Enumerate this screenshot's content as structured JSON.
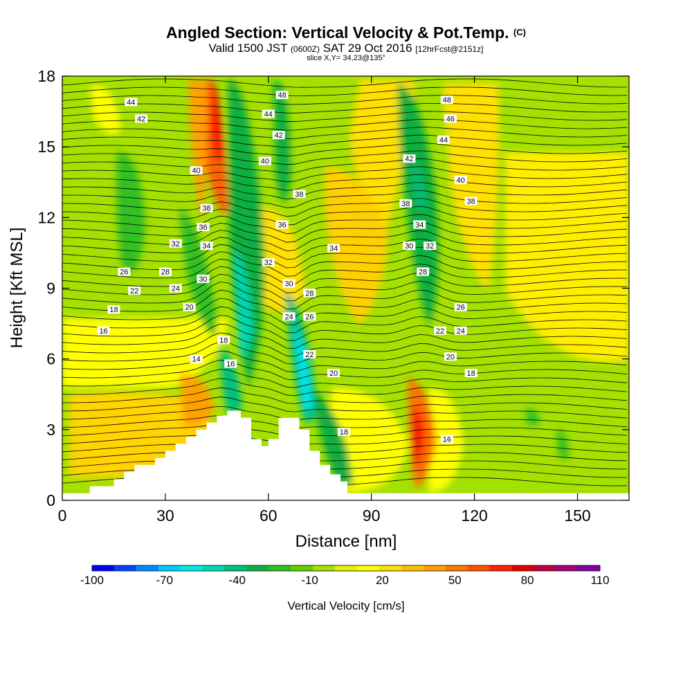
{
  "header": {
    "title": "Angled Section: Vertical Velocity & Pot.Temp.",
    "title_mark": "(C)",
    "valid_prefix": "Valid 1500 JST",
    "valid_utc": "(0600Z)",
    "valid_date": "SAT 29 Oct 2016",
    "forecast": "[12hrFcst@2151z]",
    "slice": "slice X,Y= 34,23@135°"
  },
  "colors": {
    "bg": "#a4e000",
    "terrain": "#ffffff",
    "contour": "#000000"
  },
  "chart_data": {
    "type": "heatmap",
    "title": "Angled Section: Vertical Velocity & Pot.Temp.",
    "xlabel": "Distance [nm]",
    "ylabel": "Height [Kft MSL]",
    "xlim": [
      0,
      165
    ],
    "ylim": [
      0,
      18
    ],
    "xticks": [
      0,
      30,
      60,
      90,
      120,
      150
    ],
    "yticks": [
      0,
      3,
      6,
      9,
      12,
      15,
      18
    ],
    "colorbar": {
      "label": "Vertical Velocity [cm/s]",
      "tick_labels": [
        "-100",
        "-70",
        "-40",
        "-10",
        "20",
        "50",
        "80",
        "110"
      ],
      "colors": [
        "#0000ff",
        "#0044ff",
        "#0088ff",
        "#00ccff",
        "#00e8e8",
        "#00d8b0",
        "#00c080",
        "#10b040",
        "#30c020",
        "#60d000",
        "#a4e000",
        "#e8f000",
        "#ffff00",
        "#ffe000",
        "#ffc000",
        "#ffa000",
        "#ff7800",
        "#ff5000",
        "#ff2000",
        "#e00000",
        "#c00040",
        "#a00070",
        "#8000a0"
      ]
    },
    "theta_labels": [
      {
        "x": 20,
        "y": 16.9,
        "text": "44"
      },
      {
        "x": 23,
        "y": 16.2,
        "text": "42"
      },
      {
        "x": 39,
        "y": 14.0,
        "text": "40"
      },
      {
        "x": 42,
        "y": 12.4,
        "text": "38"
      },
      {
        "x": 41,
        "y": 11.6,
        "text": "36"
      },
      {
        "x": 33,
        "y": 10.9,
        "text": "32"
      },
      {
        "x": 42,
        "y": 10.8,
        "text": "34"
      },
      {
        "x": 18,
        "y": 9.7,
        "text": "26"
      },
      {
        "x": 30,
        "y": 9.7,
        "text": "28"
      },
      {
        "x": 41,
        "y": 9.4,
        "text": "30"
      },
      {
        "x": 21,
        "y": 8.9,
        "text": "22"
      },
      {
        "x": 33,
        "y": 9.0,
        "text": "24"
      },
      {
        "x": 37,
        "y": 8.2,
        "text": "20"
      },
      {
        "x": 15,
        "y": 8.1,
        "text": "18"
      },
      {
        "x": 12,
        "y": 7.2,
        "text": "16"
      },
      {
        "x": 39,
        "y": 6.0,
        "text": "14"
      },
      {
        "x": 47,
        "y": 6.8,
        "text": "18"
      },
      {
        "x": 49,
        "y": 5.8,
        "text": "16"
      },
      {
        "x": 64,
        "y": 17.2,
        "text": "48"
      },
      {
        "x": 60,
        "y": 16.4,
        "text": "44"
      },
      {
        "x": 63,
        "y": 15.5,
        "text": "42"
      },
      {
        "x": 59,
        "y": 14.4,
        "text": "40"
      },
      {
        "x": 69,
        "y": 13.0,
        "text": "38"
      },
      {
        "x": 64,
        "y": 11.7,
        "text": "36"
      },
      {
        "x": 79,
        "y": 10.7,
        "text": "34"
      },
      {
        "x": 60,
        "y": 10.1,
        "text": "32"
      },
      {
        "x": 66,
        "y": 9.2,
        "text": "30"
      },
      {
        "x": 72,
        "y": 8.8,
        "text": "28"
      },
      {
        "x": 66,
        "y": 7.8,
        "text": "24"
      },
      {
        "x": 72,
        "y": 7.8,
        "text": "26"
      },
      {
        "x": 72,
        "y": 6.2,
        "text": "22"
      },
      {
        "x": 79,
        "y": 5.4,
        "text": "20"
      },
      {
        "x": 82,
        "y": 2.9,
        "text": "18"
      },
      {
        "x": 112,
        "y": 17.0,
        "text": "48"
      },
      {
        "x": 113,
        "y": 16.2,
        "text": "46"
      },
      {
        "x": 111,
        "y": 15.3,
        "text": "44"
      },
      {
        "x": 101,
        "y": 14.5,
        "text": "42"
      },
      {
        "x": 116,
        "y": 13.6,
        "text": "40"
      },
      {
        "x": 119,
        "y": 12.7,
        "text": "38"
      },
      {
        "x": 100,
        "y": 12.6,
        "text": "38"
      },
      {
        "x": 104,
        "y": 11.7,
        "text": "34"
      },
      {
        "x": 107,
        "y": 10.8,
        "text": "32"
      },
      {
        "x": 101,
        "y": 10.8,
        "text": "30"
      },
      {
        "x": 105,
        "y": 9.7,
        "text": "28"
      },
      {
        "x": 116,
        "y": 8.2,
        "text": "26"
      },
      {
        "x": 116,
        "y": 7.2,
        "text": "24"
      },
      {
        "x": 110,
        "y": 7.2,
        "text": "22"
      },
      {
        "x": 113,
        "y": 6.1,
        "text": "20"
      },
      {
        "x": 119,
        "y": 5.4,
        "text": "18"
      },
      {
        "x": 112,
        "y": 2.6,
        "text": "16"
      }
    ]
  }
}
